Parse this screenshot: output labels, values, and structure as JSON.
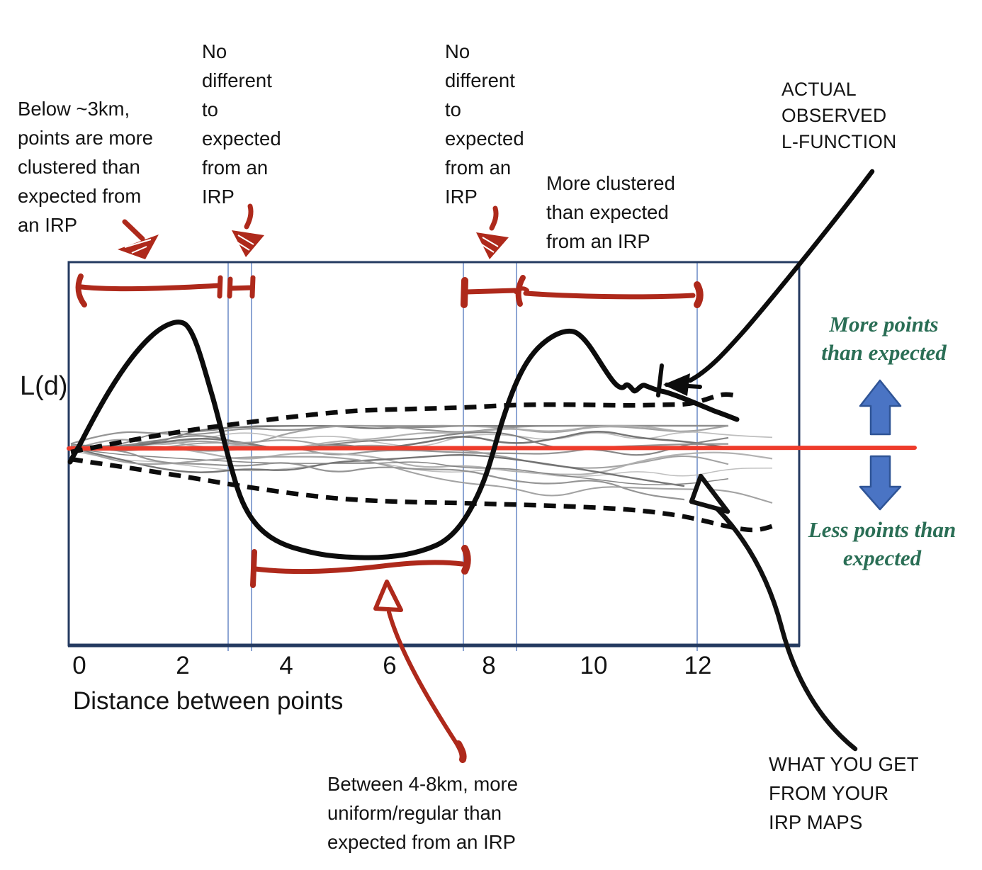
{
  "figure": {
    "y_axis_label": "L(d)",
    "x_axis_label": "Distance between points",
    "x_ticks": [
      "0",
      "2",
      "4",
      "6",
      "8",
      "10",
      "12"
    ]
  },
  "callouts": {
    "below_3km": {
      "lines": [
        "Below ~3km,",
        "points are more",
        "clustered than",
        "expected from",
        "an IRP"
      ]
    },
    "no_different_1": {
      "lines": [
        "No",
        "different",
        "to",
        "expected",
        "from an",
        "IRP"
      ]
    },
    "no_different_2": {
      "lines": [
        "No",
        "different",
        "to",
        "expected",
        "from an",
        "IRP"
      ]
    },
    "more_clustered": {
      "lines": [
        "More clustered",
        "than expected",
        "from an IRP"
      ]
    },
    "actual_observed": {
      "lines": [
        "ACTUAL",
        "OBSERVED",
        "L-FUNCTION"
      ]
    },
    "more_points": {
      "lines": [
        "More points",
        "than expected"
      ]
    },
    "less_points": {
      "lines": [
        "Less points than",
        "expected"
      ]
    },
    "between_4_8": {
      "lines": [
        "Between 4-8km, more",
        "uniform/regular than",
        "expected from an IRP"
      ]
    },
    "what_you_get": {
      "lines": [
        "WHAT YOU GET",
        "FROM YOUR",
        "IRP MAPS"
      ]
    }
  },
  "colors": {
    "ink_black": "#0c0c0c",
    "hand_red": "#ae291b",
    "expected_line_red": "#ee3b2b",
    "guide_blue": "#8ea6d4",
    "border_navy": "#243a60",
    "note_green": "#2a6e55",
    "arrow_blue_fill": "#4a74c4",
    "arrow_blue_stroke": "#2f5496",
    "sim_gray": "#8f8f8f"
  },
  "chart_data": {
    "type": "line",
    "title": "Ripley's L-function: actual observed curve vs IRP simulation envelope (hand-annotated teaching slide)",
    "xlabel": "Distance between points",
    "ylabel": "L(d)",
    "xlim": [
      0,
      13.8
    ],
    "x_ticks": [
      0,
      2,
      4,
      6,
      8,
      10,
      12
    ],
    "y_axis_note": "no y tick labels shown; values below are relative to the IRP expectation (red line = 0), 1 unit = one x-axis unit of plot scale",
    "grid": "vertical light-blue guide lines only",
    "legend_position": "none (hand-drawn callouts instead)",
    "series": [
      {
        "name": "Actual observed L-function",
        "style": "thick solid black, hand-drawn",
        "x": [
          0,
          0.4,
          1.0,
          1.5,
          2.0,
          2.4,
          2.8,
          3.0,
          3.3,
          3.6,
          4.0,
          4.5,
          5.0,
          5.5,
          6.0,
          6.5,
          7.0,
          7.5,
          7.9,
          8.3,
          8.8,
          9.2,
          9.5,
          9.9,
          10.3,
          10.7,
          11.0,
          11.3,
          11.6,
          12.0,
          12.4,
          12.7
        ],
        "y": [
          0,
          0.8,
          1.8,
          2.3,
          2.45,
          2.4,
          1.9,
          1.0,
          0.0,
          -1.0,
          -1.7,
          -1.95,
          -2.05,
          -2.1,
          -2.05,
          -1.9,
          -1.5,
          -0.85,
          -0.1,
          0.6,
          1.3,
          1.85,
          2.2,
          2.25,
          1.85,
          1.4,
          1.2,
          1.15,
          1.05,
          0.85,
          0.7,
          0.55
        ]
      },
      {
        "name": "Upper simulation envelope",
        "style": "dashed black",
        "x": [
          0,
          1,
          2,
          3,
          4,
          5,
          6,
          7,
          8,
          9,
          10,
          11,
          12,
          12.6
        ],
        "y": [
          -0.05,
          0.2,
          0.35,
          0.5,
          0.6,
          0.68,
          0.74,
          0.78,
          0.8,
          0.82,
          0.83,
          0.85,
          0.95,
          0.97
        ]
      },
      {
        "name": "Lower simulation envelope",
        "style": "dashed black",
        "x": [
          0,
          1,
          2,
          3,
          4,
          5,
          6,
          7,
          8,
          9,
          10,
          11,
          12,
          12.9,
          13.4
        ],
        "y": [
          -0.1,
          -0.3,
          -0.5,
          -0.66,
          -0.85,
          -0.98,
          -1.05,
          -1.08,
          -1.12,
          -1.15,
          -1.2,
          -1.3,
          -1.5,
          -1.55,
          -1.5
        ]
      },
      {
        "name": "Expected under IRP",
        "style": "solid red horizontal line (extends past plot to the blue arrows)",
        "x": [
          0,
          13.8
        ],
        "y": [
          0,
          0
        ]
      },
      {
        "name": "Simulated IRP L-functions",
        "style": "≈16 thin gray squiggly lines filling the band between the envelopes",
        "x_range": [
          0,
          13.5
        ],
        "y_range": [
          -1.3,
          0.45
        ]
      }
    ],
    "region_annotations": [
      {
        "d_range": [
          0,
          2.8
        ],
        "meaning": "Below ~3km, points are more clustered than expected from an IRP",
        "bracket": "red, above curve"
      },
      {
        "d_range": [
          2.9,
          3.3
        ],
        "meaning": "No different to expected from an IRP",
        "bracket": "red, above curve"
      },
      {
        "d_range": [
          3.4,
          7.5
        ],
        "meaning": "Between 4-8km, more uniform/regular than expected from an IRP",
        "bracket": "red, below curve"
      },
      {
        "d_range": [
          7.6,
          8.4
        ],
        "meaning": "No different to expected from an IRP",
        "bracket": "red, above curve"
      },
      {
        "d_range": [
          8.5,
          11.9
        ],
        "meaning": "More clustered than expected from an IRP",
        "bracket": "red, above curve"
      }
    ],
    "guide_lines_d": [
      2.9,
      3.3,
      7.5,
      8.6,
      11.9
    ]
  }
}
